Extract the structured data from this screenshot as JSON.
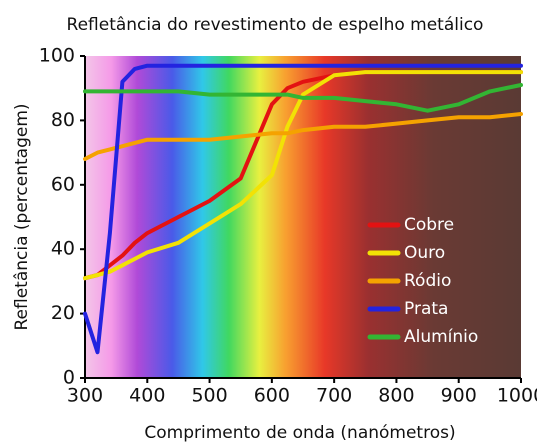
{
  "chart_data": {
    "type": "line",
    "title": "Refletância do revestimento de espelho metálico",
    "x_label": "Comprimento de onda (nanómetros)",
    "y_label": "Refletância (percentagem)",
    "x": [
      300,
      320,
      340,
      360,
      380,
      400,
      450,
      500,
      550,
      600,
      625,
      650,
      700,
      750,
      800,
      850,
      900,
      950,
      1000
    ],
    "series": [
      {
        "name": "Cobre",
        "color": "#e31212",
        "values": [
          31,
          32,
          35,
          38,
          42,
          45,
          50,
          55,
          62,
          85,
          90,
          92,
          94,
          95,
          95,
          95,
          95,
          95,
          95
        ]
      },
      {
        "name": "Ouro",
        "color": "#f2e205",
        "values": [
          31,
          32,
          33,
          35,
          37,
          39,
          42,
          48,
          54,
          63,
          78,
          88,
          94,
          95,
          95,
          95,
          95,
          95,
          95
        ]
      },
      {
        "name": "Ródio",
        "color": "#f5a200",
        "values": [
          68,
          70,
          71,
          72,
          73,
          74,
          74,
          74,
          75,
          76,
          76,
          77,
          78,
          78,
          79,
          80,
          81,
          81,
          82
        ]
      },
      {
        "name": "Prata",
        "color": "#2323e0",
        "values": [
          20,
          8,
          45,
          92,
          96,
          97,
          97,
          97,
          97,
          97,
          97,
          97,
          97,
          97,
          97,
          97,
          97,
          97,
          97
        ]
      },
      {
        "name": "Alumínio",
        "color": "#33b533",
        "values": [
          89,
          89,
          89,
          89,
          89,
          89,
          89,
          88,
          88,
          88,
          88,
          87,
          87,
          86,
          85,
          83,
          85,
          89,
          91
        ]
      }
    ],
    "xlim": [
      300,
      1000
    ],
    "ylim": [
      0,
      100
    ],
    "xticks": [
      300,
      400,
      500,
      600,
      700,
      800,
      900,
      1000
    ],
    "yticks": [
      0,
      20,
      40,
      60,
      80,
      100
    ]
  }
}
